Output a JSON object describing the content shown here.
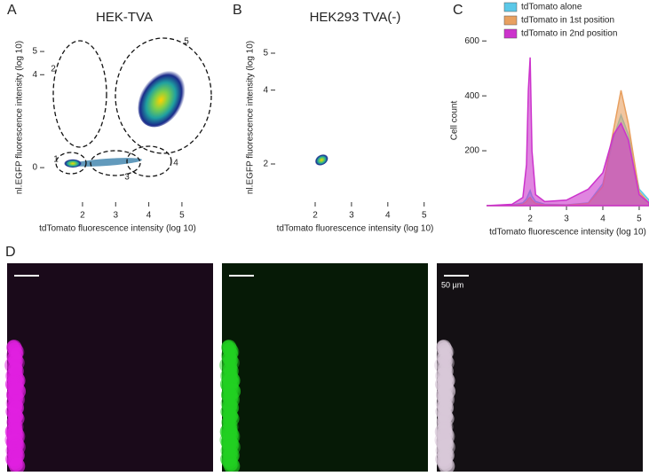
{
  "chart_data": [
    {
      "type": "density",
      "panel": "A",
      "title": "HEK-TVA",
      "xlabel": "tdTomato fluorescence intensity (log 10)",
      "ylabel": "nl.EGFP fluorescence intensity (log 10)",
      "xlim": [
        0.85,
        5.27
      ],
      "ylim": [
        -1.37,
        5.69
      ],
      "xticks": [
        2,
        3,
        4,
        5
      ],
      "yticks": [
        0,
        4,
        5
      ],
      "gates": [
        "1",
        "2",
        "3",
        "4",
        "5"
      ]
    },
    {
      "type": "density",
      "panel": "B",
      "title": "HEK293 TVA(-)",
      "xlabel": "tdTomato fluorescence intensity (log 10)",
      "ylabel": "nl.EGFP fluorescence intensity (log 10)",
      "xlim": [
        0.9,
        5.3
      ],
      "ylim": [
        1.04,
        5.48
      ],
      "xticks": [
        2,
        3,
        4,
        5
      ],
      "yticks": [
        2,
        4,
        5
      ]
    },
    {
      "type": "area",
      "panel": "C",
      "xlabel": "tdTomato fluorescence intensity (log 10)",
      "ylabel": "Cell count",
      "xlim": [
        0.8,
        5.27
      ],
      "ylim": [
        0,
        620
      ],
      "xticks": [
        2,
        3,
        4,
        5
      ],
      "yticks": [
        200,
        400,
        600
      ],
      "x": [
        0.8,
        1.5,
        1.8,
        1.9,
        1.95,
        2.0,
        2.05,
        2.15,
        2.4,
        3.0,
        3.6,
        4.0,
        4.3,
        4.5,
        4.7,
        5.0,
        5.27
      ],
      "series": [
        {
          "name": "tdTomato alone",
          "color": "#5bc8e8",
          "values": [
            0,
            2,
            10,
            25,
            40,
            55,
            35,
            15,
            5,
            3,
            10,
            80,
            250,
            330,
            260,
            60,
            20
          ]
        },
        {
          "name": "tdTomato in 1st position",
          "color": "#e8a060",
          "values": [
            0,
            1,
            5,
            15,
            25,
            30,
            20,
            8,
            3,
            2,
            8,
            70,
            280,
            420,
            300,
            50,
            10
          ]
        },
        {
          "name": "tdTomato in 2nd position",
          "color": "#cc33cc",
          "values": [
            0,
            5,
            30,
            150,
            420,
            540,
            200,
            40,
            15,
            20,
            60,
            120,
            260,
            300,
            240,
            40,
            10
          ]
        }
      ],
      "legend": "upper-right"
    }
  ],
  "panel_d": {
    "label": "D",
    "scale_bar": "50 µm"
  }
}
